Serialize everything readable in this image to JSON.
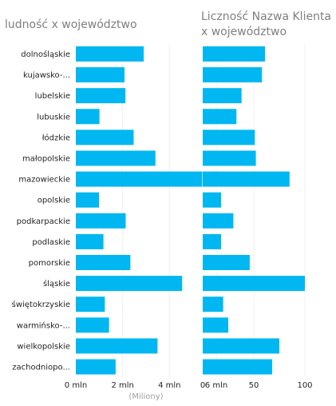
{
  "chart_data": [
    {
      "type": "bar",
      "orientation": "horizontal",
      "title": "ludność x województwo",
      "categories": [
        "dolnośląskie",
        "kujawsko-...",
        "lubelskie",
        "lubuskie",
        "łódzkie",
        "małopolskie",
        "mazowieckie",
        "opolskie",
        "podkarpackie",
        "podlaskie",
        "pomorskie",
        "śląskie",
        "świętokrzyskie",
        "warmińsko-...",
        "wielkopolskie",
        "zachodniopo..."
      ],
      "values": [
        2.9,
        2.08,
        2.12,
        1.01,
        2.47,
        3.4,
        5.4,
        0.99,
        2.13,
        1.18,
        2.33,
        4.54,
        1.24,
        1.42,
        3.49,
        1.7
      ],
      "x_tick_labels": [
        "0 mln",
        "2 mln",
        "4 mln",
        "6 mln"
      ],
      "x_ticks": [
        0,
        2,
        4,
        6
      ],
      "xlim": [
        0,
        6.4
      ],
      "unit_label": "(Miliony)",
      "color": "#00B7F1",
      "grid": true
    },
    {
      "type": "bar",
      "orientation": "horizontal",
      "title": "Liczność Nazwa Klienta x województwo",
      "categories": [
        "dolnośląskie",
        "kujawsko-...",
        "lubelskie",
        "lubuskie",
        "łódzkie",
        "małopolskie",
        "mazowieckie",
        "opolskie",
        "podkarpackie",
        "podlaskie",
        "pomorskie",
        "śląskie",
        "świętokrzyskie",
        "warmińsko-...",
        "wielkopolskie",
        "zachodniopo..."
      ],
      "values": [
        61,
        58,
        38,
        33,
        51,
        52,
        85,
        18,
        30,
        18,
        46,
        100,
        20,
        25,
        75,
        68
      ],
      "x_tick_labels": [
        "0",
        "50",
        "100"
      ],
      "x_ticks": [
        0,
        50,
        100
      ],
      "xlim": [
        0,
        105
      ],
      "color": "#00B7F1",
      "grid": true
    }
  ]
}
